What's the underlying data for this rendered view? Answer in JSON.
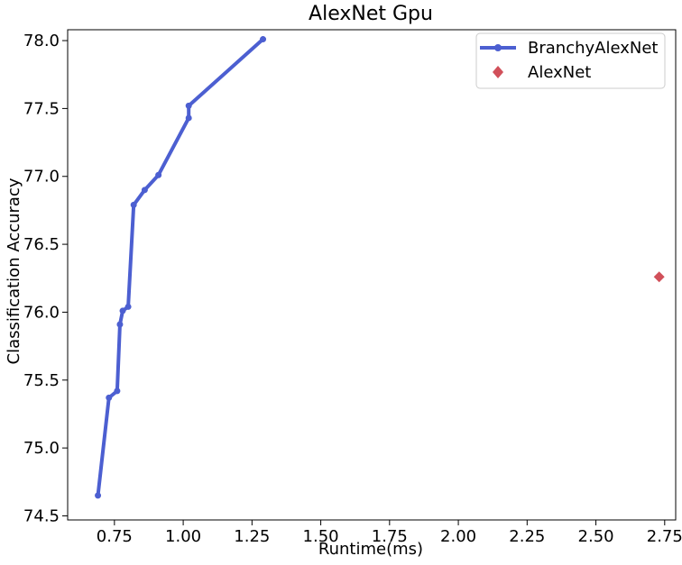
{
  "chart_data": {
    "type": "scatter",
    "title": "AlexNet Gpu",
    "xlabel": "Runtime(ms)",
    "ylabel": "Classification Accuracy",
    "xlim": [
      0.58,
      2.79
    ],
    "ylim": [
      74.47,
      78.08
    ],
    "xticks": [
      0.75,
      1.0,
      1.25,
      1.5,
      1.75,
      2.0,
      2.25,
      2.5,
      2.75
    ],
    "xtick_labels": [
      "0.75",
      "1.00",
      "1.25",
      "1.50",
      "1.75",
      "2.00",
      "2.25",
      "2.50",
      "2.75"
    ],
    "yticks": [
      74.5,
      75.0,
      75.5,
      76.0,
      76.5,
      77.0,
      77.5,
      78.0
    ],
    "ytick_labels": [
      "74.5",
      "75.0",
      "75.5",
      "76.0",
      "76.5",
      "77.0",
      "77.5",
      "78.0"
    ],
    "grid": false,
    "legend_position": "top-right",
    "series": [
      {
        "name": "BranchyAlexNet",
        "kind": "line",
        "marker": "circle",
        "color": "#4c5fd1",
        "points": [
          [
            0.69,
            74.65
          ],
          [
            0.73,
            75.37
          ],
          [
            0.76,
            75.42
          ],
          [
            0.77,
            75.91
          ],
          [
            0.78,
            76.01
          ],
          [
            0.8,
            76.04
          ],
          [
            0.82,
            76.79
          ],
          [
            0.86,
            76.9
          ],
          [
            0.91,
            77.01
          ],
          [
            1.02,
            77.43
          ],
          [
            1.02,
            77.52
          ],
          [
            1.29,
            78.01
          ]
        ]
      },
      {
        "name": "AlexNet",
        "kind": "scatter",
        "marker": "diamond",
        "color": "#d1505a",
        "points": [
          [
            2.73,
            76.26
          ]
        ]
      }
    ]
  }
}
